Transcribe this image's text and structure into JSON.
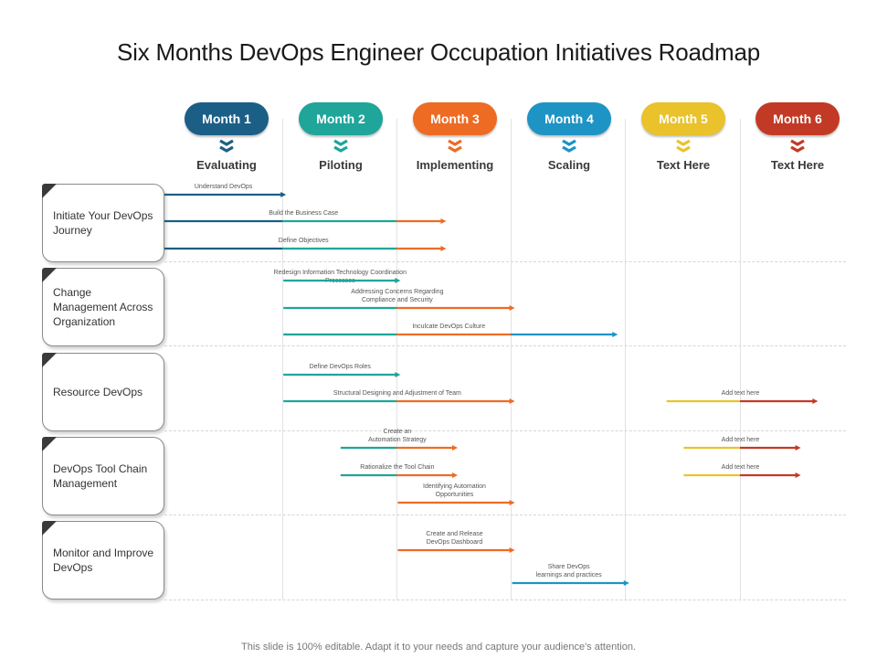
{
  "title": "Six Months DevOps Engineer Occupation Initiatives Roadmap",
  "footer": "This slide is 100% editable. Adapt it to your needs and capture your audience's attention.",
  "months": [
    {
      "label": "Month 1",
      "phase": "Evaluating",
      "color": "#1c5f86"
    },
    {
      "label": "Month 2",
      "phase": "Piloting",
      "color": "#1fa59a"
    },
    {
      "label": "Month 3",
      "phase": "Implementing",
      "color": "#ee6b24"
    },
    {
      "label": "Month 4",
      "phase": "Scaling",
      "color": "#1e94c4"
    },
    {
      "label": "Month 5",
      "phase": "Text Here",
      "color": "#e9c22c"
    },
    {
      "label": "Month 6",
      "phase": "Text Here",
      "color": "#c23a26"
    }
  ],
  "categories": [
    "Initiate Your DevOps  Journey",
    "Change Management Across Organization",
    "Resource DevOps",
    "DevOps  Tool Chain Management",
    "Monitor and Improve  DevOps"
  ],
  "tasks": [
    {
      "label": "Understand  DevOps",
      "start": 0,
      "end": 1.0,
      "colors": [
        "#1c5f86"
      ]
    },
    {
      "label": "Build the Business Case",
      "start": 0,
      "end": 2.4,
      "colors": [
        "#1c5f86",
        "#1fa59a",
        "#ee6b24"
      ]
    },
    {
      "label": "Define Objectives",
      "start": 0,
      "end": 2.4,
      "colors": [
        "#1c5f86",
        "#1fa59a",
        "#ee6b24"
      ]
    },
    {
      "label": "Redesign  Information  Technology  Coordination  Processes",
      "start": 1.0,
      "end": 2.0,
      "colors": [
        "#1fa59a"
      ]
    },
    {
      "label": "Addressing  Concerns  Regarding\nCompliance and Security",
      "start": 1.0,
      "end": 3.0,
      "colors": [
        "#1fa59a",
        "#ee6b24"
      ]
    },
    {
      "label": "Inculcate DevOps Culture",
      "start": 1.0,
      "end": 3.9,
      "colors": [
        "#1fa59a",
        "#ee6b24",
        "#1e94c4"
      ]
    },
    {
      "label": "Define DevOps  Roles",
      "start": 1.0,
      "end": 2.0,
      "colors": [
        "#1fa59a"
      ]
    },
    {
      "label": "Structural Designing  and Adjustment  of Team",
      "start": 1.0,
      "end": 3.0,
      "colors": [
        "#1fa59a",
        "#ee6b24"
      ]
    },
    {
      "label": "Add text here",
      "start": 4.35,
      "end": 5.65,
      "colors": [
        "#e9c22c",
        "#c23a26"
      ]
    },
    {
      "label": "Create an\nAutomation  Strategy",
      "start": 1.5,
      "end": 2.5,
      "colors": [
        "#1fa59a",
        "#ee6b24"
      ]
    },
    {
      "label": "Add text here",
      "start": 4.5,
      "end": 5.5,
      "colors": [
        "#e9c22c",
        "#c23a26"
      ]
    },
    {
      "label": "Rationalize  the Tool Chain",
      "start": 1.5,
      "end": 2.5,
      "colors": [
        "#1fa59a",
        "#ee6b24"
      ]
    },
    {
      "label": "Add text here",
      "start": 4.5,
      "end": 5.5,
      "colors": [
        "#e9c22c",
        "#c23a26"
      ]
    },
    {
      "label": "Identifying  Automation\nOpportunities",
      "start": 2.0,
      "end": 3.0,
      "colors": [
        "#ee6b24"
      ]
    },
    {
      "label": "Create and Release\nDevOps Dashboard",
      "start": 2.0,
      "end": 3.0,
      "colors": [
        "#ee6b24"
      ]
    },
    {
      "label": "Share DevOps\nlearnings  and practices",
      "start": 3.0,
      "end": 4.0,
      "colors": [
        "#1e94c4"
      ]
    }
  ]
}
